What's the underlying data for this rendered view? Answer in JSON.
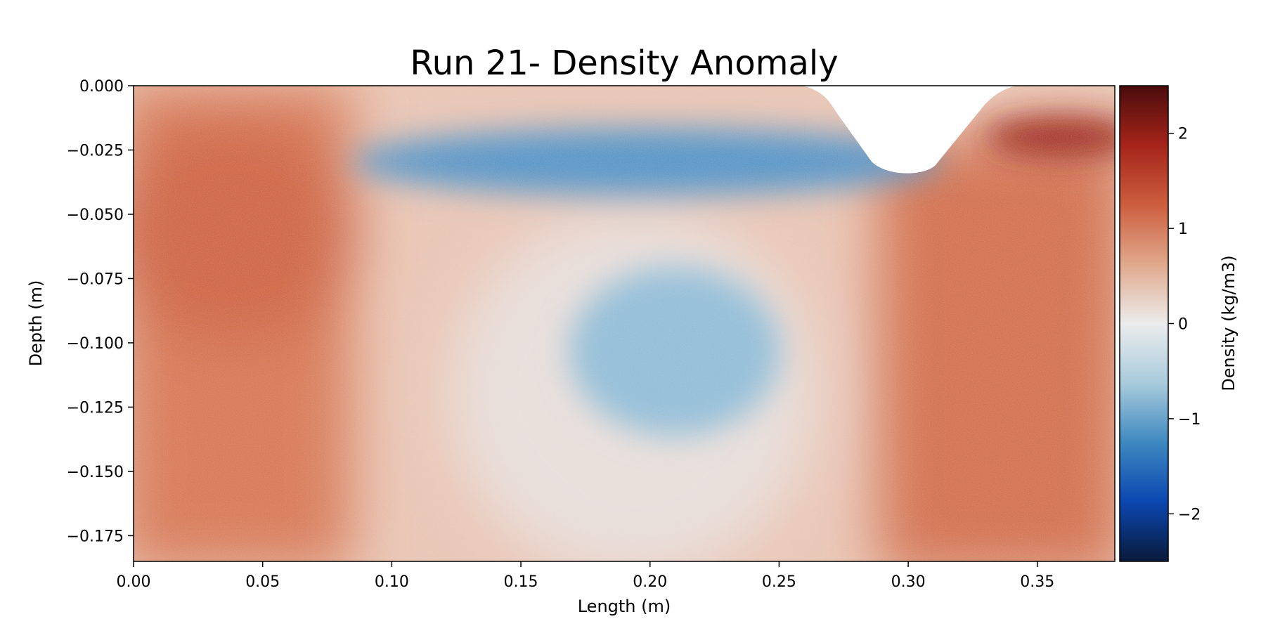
{
  "chart_data": {
    "type": "heatmap",
    "title": "Run 21- Density Anomaly",
    "xlabel": "Length (m)",
    "ylabel": "Depth (m)",
    "xlim": [
      0.0,
      0.38
    ],
    "ylim": [
      -0.185,
      0.0
    ],
    "x_ticks": [
      0.0,
      0.05,
      0.1,
      0.15,
      0.2,
      0.25,
      0.3,
      0.35
    ],
    "x_tick_labels": [
      "0.00",
      "0.05",
      "0.10",
      "0.15",
      "0.20",
      "0.25",
      "0.30",
      "0.35"
    ],
    "y_ticks": [
      0.0,
      -0.025,
      -0.05,
      -0.075,
      -0.1,
      -0.125,
      -0.15,
      -0.175
    ],
    "y_tick_labels": [
      "0.000",
      "−0.025",
      "−0.050",
      "−0.075",
      "−0.100",
      "−0.125",
      "−0.150",
      "−0.175"
    ],
    "colorbar": {
      "label": "Density (kg/m3)",
      "vmin": -2.5,
      "vmax": 2.5,
      "ticks": [
        2,
        1,
        0,
        -1,
        -2
      ],
      "tick_labels": [
        "2",
        "1",
        "0",
        "−1",
        "−2"
      ],
      "colormap": [
        "#0a1a3a",
        "#0b47b0",
        "#3e88c0",
        "#a9cbdc",
        "#ececec",
        "#e0a88c",
        "#cc5e3e",
        "#a5241a",
        "#4a0c0c"
      ]
    },
    "grid": false,
    "features": [
      {
        "name": "upper-blue-band",
        "x_range": [
          0.08,
          0.31
        ],
        "depth_range": [
          -0.045,
          -0.018
        ],
        "value": -1.0
      },
      {
        "name": "lower-blue-lobe",
        "x_range": [
          0.17,
          0.26
        ],
        "depth_range": [
          -0.14,
          -0.075
        ],
        "value": -0.6
      },
      {
        "name": "right-dark-red-layer",
        "x_range": [
          0.33,
          0.38
        ],
        "depth_range": [
          -0.03,
          -0.01
        ],
        "value": 2.0
      },
      {
        "name": "left-red-region",
        "x_range": [
          0.0,
          0.1
        ],
        "depth_range": [
          -0.185,
          0.0
        ],
        "value": 1.2
      },
      {
        "name": "right-red-region",
        "x_range": [
          0.27,
          0.38
        ],
        "depth_range": [
          -0.185,
          -0.03
        ],
        "value": 1.3
      },
      {
        "name": "surface-cutout",
        "x_range": [
          0.255,
          0.345
        ],
        "depth_range": [
          -0.034,
          0.0
        ],
        "value": null
      }
    ]
  }
}
